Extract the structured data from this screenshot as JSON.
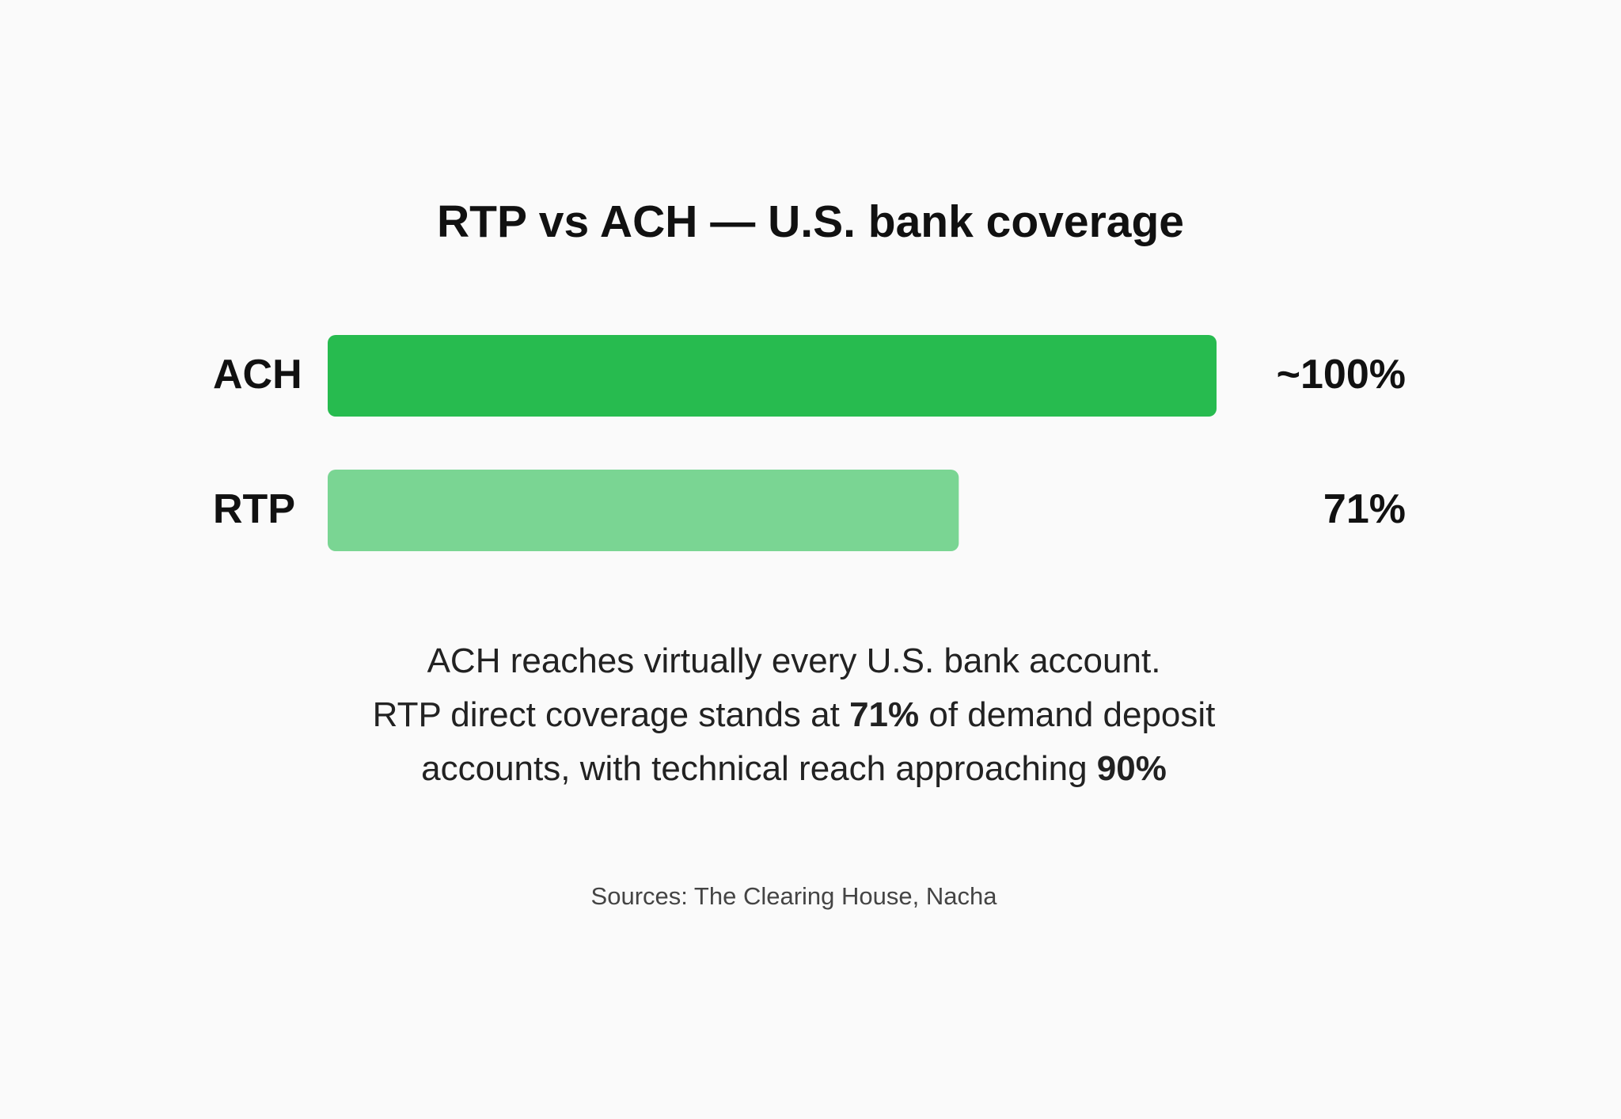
{
  "chart_data": {
    "type": "bar",
    "orientation": "horizontal",
    "title": "RTP vs ACH — U.S. bank coverage",
    "categories": [
      "ACH",
      "RTP"
    ],
    "values": [
      100,
      71
    ],
    "value_labels": [
      "~100%",
      "71%"
    ],
    "colors": [
      "#27bb4f",
      "#7ad593"
    ],
    "note": [
      [
        "ACH reaches virtually every U.S. bank account."
      ],
      [
        "RTP direct coverage stands at ",
        "71%",
        " of demand deposit"
      ],
      [
        "accounts, with technical reach approaching ",
        "90%"
      ]
    ],
    "source": "Sources: The Clearing House, Nacha"
  }
}
